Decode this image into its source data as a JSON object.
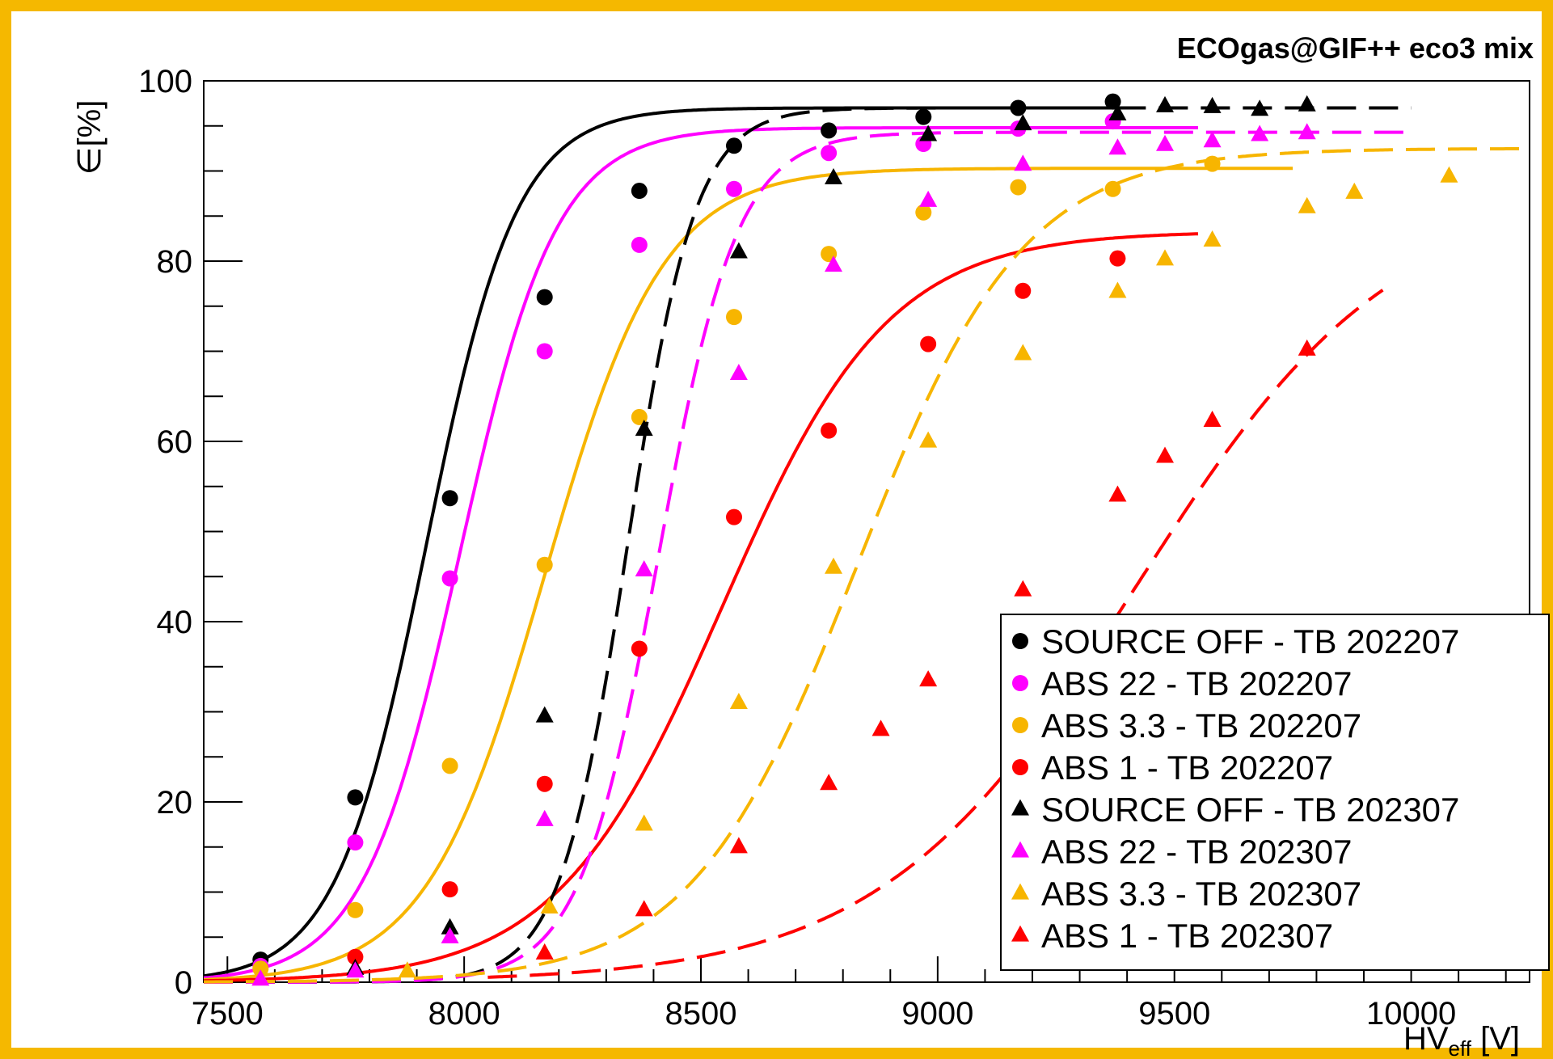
{
  "chart_data": {
    "type": "scatter",
    "title": "ECOgas@GIF++ eco3 mix",
    "xlabel_main": "HV",
    "xlabel_sub": "eff",
    "xlabel_unit": " [V]",
    "ylabel": "∈[%]",
    "xlim": [
      7450,
      10250
    ],
    "ylim": [
      0,
      100
    ],
    "x_ticks": [
      7500,
      8000,
      8500,
      9000,
      9500,
      10000
    ],
    "y_ticks": [
      0,
      20,
      40,
      60,
      80,
      100
    ],
    "grid": false,
    "legend_position": "bottom-right",
    "series": [
      {
        "name": "SOURCE OFF - TB 202207",
        "marker": "circle",
        "line": "solid",
        "color": "#000000",
        "x": [
          7570,
          7770,
          7970,
          8170,
          8370,
          8570,
          8770,
          8970,
          9170,
          9370
        ],
        "y": [
          2.5,
          20.5,
          53.7,
          76.0,
          87.8,
          92.8,
          94.5,
          96.0,
          97.0,
          97.7
        ],
        "fit": {
          "emax": 97.0,
          "hv50": 7920,
          "lambda": 0.0105,
          "xmin": 7450,
          "xmax": 9380
        }
      },
      {
        "name": "ABS 22 - TB 202207",
        "marker": "circle",
        "line": "solid",
        "color": "#ff00ff",
        "x": [
          7570,
          7770,
          7970,
          8170,
          8370,
          8570,
          8770,
          8970,
          9170,
          9370
        ],
        "y": [
          1.8,
          15.5,
          44.8,
          70.0,
          81.8,
          88.0,
          92.0,
          93.0,
          94.7,
          95.5
        ],
        "fit": {
          "emax": 94.8,
          "hv50": 7990,
          "lambda": 0.0098,
          "xmin": 7450,
          "xmax": 9550
        }
      },
      {
        "name": "ABS 3.3 - TB 202207",
        "marker": "circle",
        "line": "solid",
        "color": "#f7b500",
        "x": [
          7570,
          7770,
          7970,
          8170,
          8370,
          8570,
          8770,
          8970,
          9170,
          9370,
          9580
        ],
        "y": [
          1.5,
          8.0,
          24.0,
          46.3,
          62.7,
          73.8,
          80.8,
          85.4,
          88.2,
          88.0,
          90.8
        ],
        "fit": {
          "emax": 90.3,
          "hv50": 8170,
          "lambda": 0.008,
          "xmin": 7450,
          "xmax": 9750
        }
      },
      {
        "name": "ABS 1 - TB 202207",
        "marker": "circle",
        "line": "solid",
        "color": "#ff0000",
        "x": [
          7770,
          7970,
          8170,
          8370,
          8570,
          8770,
          8980,
          9180,
          9380
        ],
        "y": [
          2.8,
          10.3,
          22.0,
          37.0,
          51.6,
          61.2,
          70.8,
          76.7,
          80.3
        ],
        "fit": {
          "emax": 83.3,
          "hv50": 8545,
          "lambda": 0.0057,
          "xmin": 7450,
          "xmax": 9550
        }
      },
      {
        "name": "SOURCE OFF - TB 202307",
        "marker": "triangle",
        "line": "dashed",
        "color": "#000000",
        "x": [
          7770,
          7970,
          8170,
          8380,
          8580,
          8780,
          8980,
          9180,
          9380,
          9480,
          9580,
          9680,
          9780
        ],
        "y": [
          1.5,
          6.0,
          29.5,
          61.3,
          81.0,
          89.2,
          94.0,
          95.2,
          96.3,
          97.2,
          97.1,
          96.8,
          97.3
        ],
        "fit": {
          "emax": 97.0,
          "hv50": 8345,
          "lambda": 0.014,
          "xmin": 7450,
          "xmax": 10000
        }
      },
      {
        "name": "ABS 22 - TB 202307",
        "marker": "triangle",
        "line": "dashed",
        "color": "#ff00ff",
        "x": [
          7570,
          7770,
          7970,
          8170,
          8380,
          8580,
          8780,
          8980,
          9180,
          9380,
          9480,
          9580,
          9680,
          9780
        ],
        "y": [
          0.3,
          1.2,
          5.0,
          18.0,
          45.7,
          67.5,
          79.5,
          86.7,
          90.7,
          92.5,
          92.9,
          93.3,
          94.0,
          94.2
        ],
        "fit": {
          "emax": 94.3,
          "hv50": 8410,
          "lambda": 0.012,
          "xmin": 7450,
          "xmax": 10000
        }
      },
      {
        "name": "ABS 3.3 - TB 202307",
        "marker": "triangle",
        "line": "dashed",
        "color": "#f7b500",
        "x": [
          7880,
          8180,
          8380,
          8580,
          8780,
          8980,
          9180,
          9380,
          9480,
          9580,
          9780,
          9880,
          10080
        ],
        "y": [
          1.2,
          8.3,
          17.5,
          31.0,
          46.0,
          60.0,
          69.7,
          76.6,
          80.2,
          82.3,
          86.0,
          87.6,
          89.4
        ],
        "fit": {
          "emax": 92.5,
          "hv50": 8830,
          "lambda": 0.0057,
          "xmin": 7450,
          "xmax": 10250
        }
      },
      {
        "name": "ABS 1 - TB 202307",
        "marker": "triangle",
        "line": "dashed",
        "color": "#ff0000",
        "x": [
          8170,
          8380,
          8580,
          8770,
          8880,
          8980,
          9180,
          9380,
          9480,
          9580,
          9780
        ],
        "y": [
          3.2,
          8.0,
          15.0,
          22.0,
          28.0,
          33.5,
          43.5,
          54.0,
          58.3,
          62.3,
          70.2
        ],
        "fit": {
          "emax": 88.0,
          "hv50": 9420,
          "lambda": 0.0037,
          "xmin": 8050,
          "xmax": 9940
        }
      }
    ]
  }
}
